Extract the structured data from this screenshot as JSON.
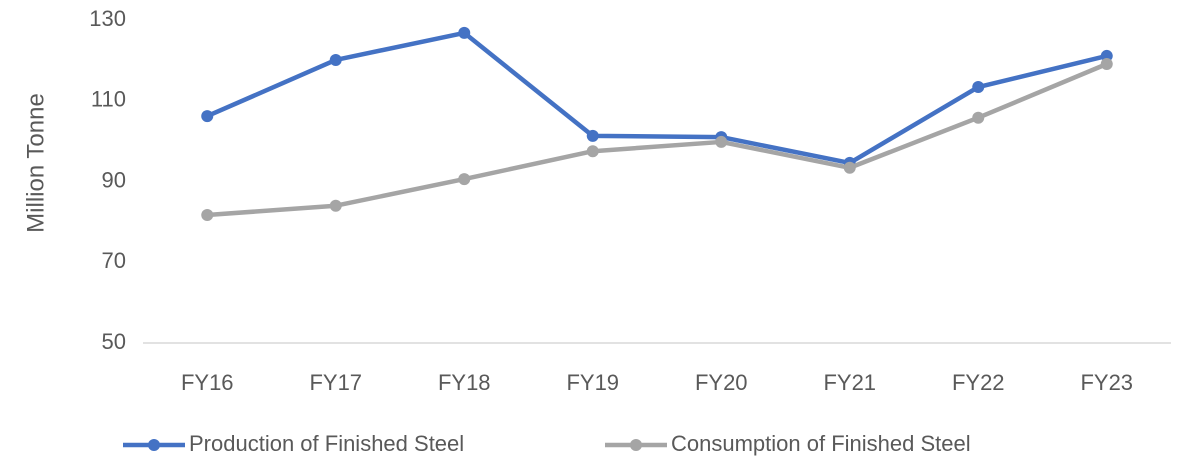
{
  "chart_data": {
    "type": "line",
    "ylabel": "Million Tonne",
    "categories": [
      "FY16",
      "FY17",
      "FY18",
      "FY19",
      "FY20",
      "FY21",
      "FY22",
      "FY23"
    ],
    "series": [
      {
        "name": "Production of Finished Steel",
        "color": "#4472c4",
        "values": [
          106.2,
          120.1,
          126.8,
          101.3,
          101.0,
          94.6,
          113.4,
          121.1
        ]
      },
      {
        "name": "Consumption of Finished Steel",
        "color": "#a5a5a5",
        "values": [
          81.7,
          84.0,
          90.6,
          97.5,
          99.8,
          93.4,
          105.8,
          119.1
        ]
      }
    ],
    "ylim": [
      50,
      130
    ],
    "yticks": [
      50,
      70,
      90,
      110,
      130
    ],
    "grid": false,
    "legend": "bottom"
  }
}
